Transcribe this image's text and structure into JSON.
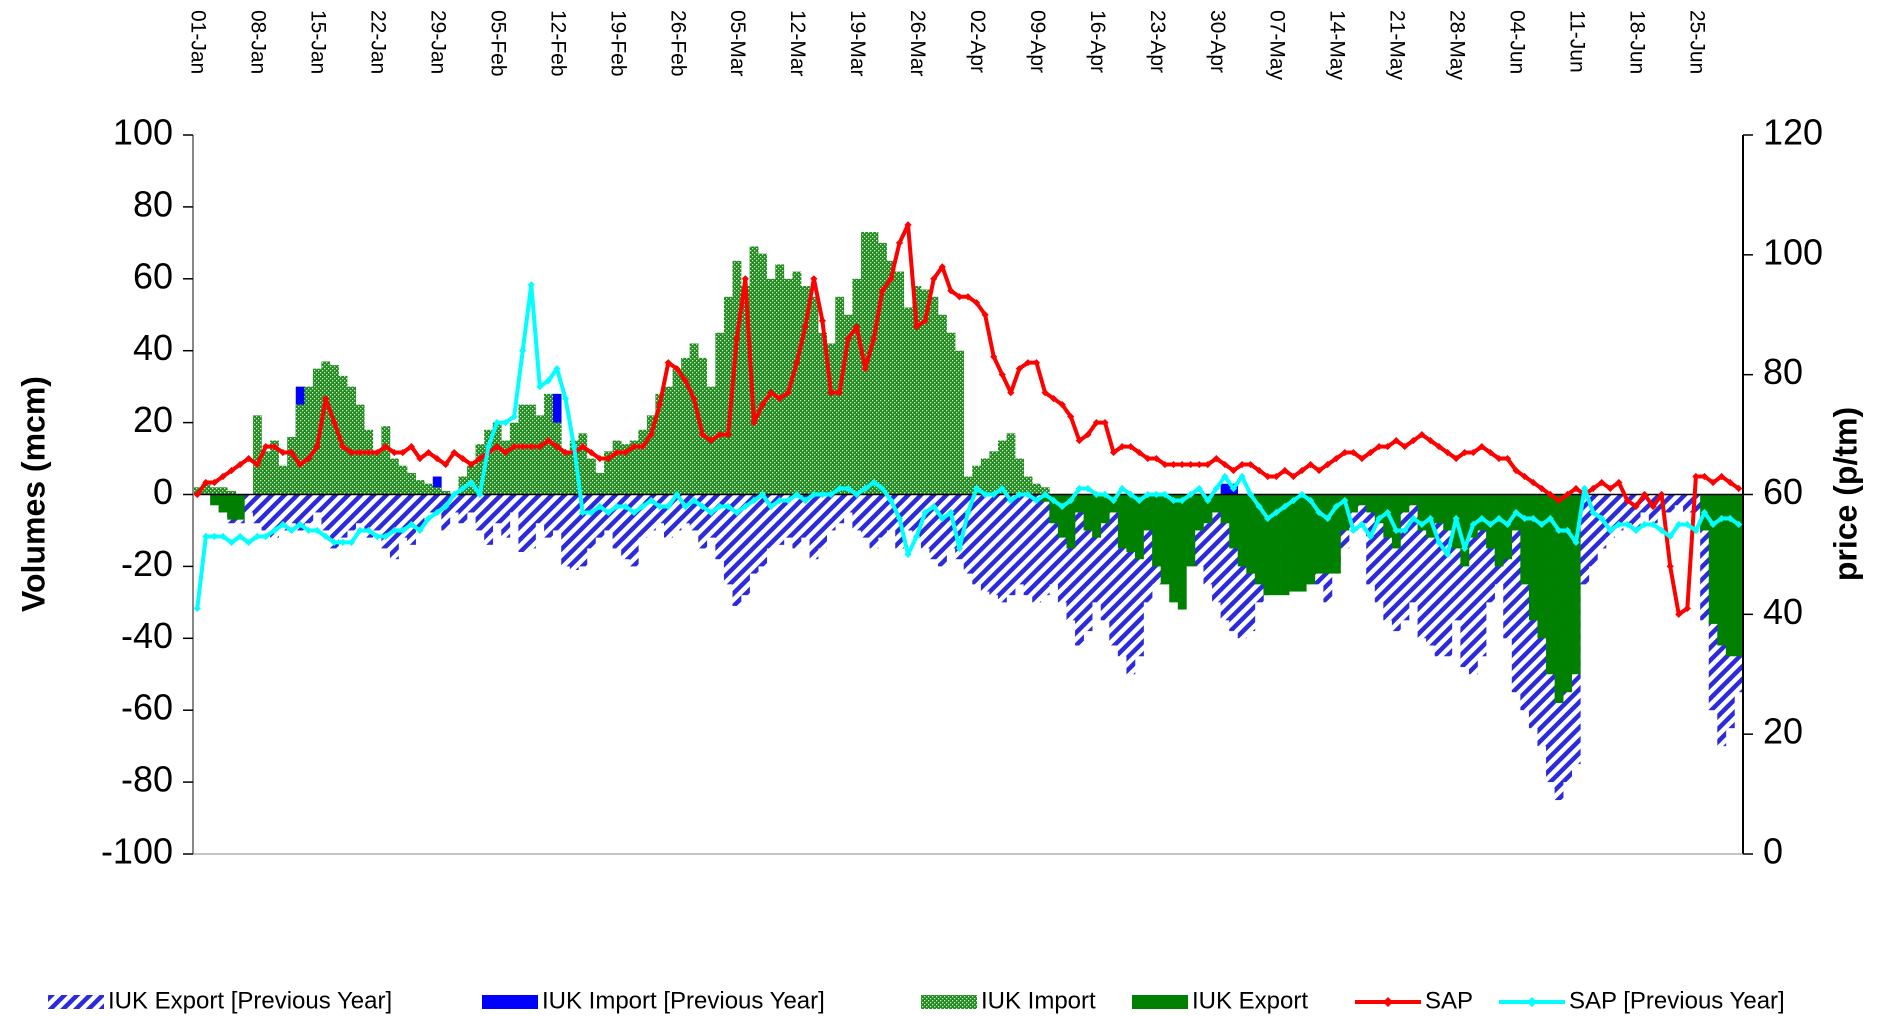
{
  "chart_data": {
    "type": "bar-line",
    "y_label": "Volumes (mcm)",
    "y2_label": "price (p/tm)",
    "ylim": [
      -100,
      100
    ],
    "yticks": [
      -100,
      -80,
      -60,
      -40,
      -20,
      0,
      20,
      40,
      60,
      80,
      100
    ],
    "y2lim": [
      0,
      120
    ],
    "y2ticks": [
      0,
      20,
      40,
      60,
      80,
      100,
      120
    ],
    "legend": "bottom",
    "grid": false,
    "categories": [
      "01-Jan",
      null,
      null,
      null,
      null,
      null,
      null,
      "08-Jan",
      null,
      null,
      null,
      null,
      null,
      null,
      "15-Jan",
      null,
      null,
      null,
      null,
      null,
      null,
      "22-Jan",
      null,
      null,
      null,
      null,
      null,
      null,
      "29-Jan",
      null,
      null,
      null,
      null,
      null,
      null,
      "05-Feb",
      null,
      null,
      null,
      null,
      null,
      null,
      "12-Feb",
      null,
      null,
      null,
      null,
      null,
      null,
      "19-Feb",
      null,
      null,
      null,
      null,
      null,
      null,
      "26-Feb",
      null,
      null,
      null,
      null,
      null,
      null,
      "05-Mar",
      null,
      null,
      null,
      null,
      null,
      null,
      "12-Mar",
      null,
      null,
      null,
      null,
      null,
      null,
      "19-Mar",
      null,
      null,
      null,
      null,
      null,
      null,
      "26-Mar",
      null,
      null,
      null,
      null,
      null,
      null,
      "02-Apr",
      null,
      null,
      null,
      null,
      null,
      null,
      "09-Apr",
      null,
      null,
      null,
      null,
      null,
      null,
      "16-Apr",
      null,
      null,
      null,
      null,
      null,
      null,
      "23-Apr",
      null,
      null,
      null,
      null,
      null,
      null,
      "30-Apr",
      null,
      null,
      null,
      null,
      null,
      null,
      "07-May",
      null,
      null,
      null,
      null,
      null,
      null,
      "14-May",
      null,
      null,
      null,
      null,
      null,
      null,
      "21-May",
      null,
      null,
      null,
      null,
      null,
      null,
      "28-May",
      null,
      null,
      null,
      null,
      null,
      null,
      "04-Jun",
      null,
      null,
      null,
      null,
      null,
      null,
      "11-Jun",
      null,
      null,
      null,
      null,
      null,
      null,
      "18-Jun",
      null,
      null,
      null,
      null,
      null,
      null,
      "25-Jun",
      null,
      null,
      null,
      null,
      null
    ],
    "series": [
      {
        "name": "IUK Export [Previous Year]",
        "kind": "bar",
        "pattern": "hatch",
        "color": "#2b2bdc",
        "values": [
          0,
          0,
          -2,
          -5,
          -8,
          -8,
          -5,
          -8,
          -10,
          -12,
          -10,
          -8,
          -10,
          -8,
          -5,
          -10,
          -15,
          -12,
          -10,
          -8,
          -12,
          -10,
          -15,
          -18,
          -12,
          -14,
          -10,
          -5,
          -5,
          -10,
          -5,
          -8,
          -5,
          -10,
          -14,
          -8,
          -12,
          -5,
          -16,
          -15,
          -8,
          -12,
          -10,
          -20,
          -21,
          -20,
          -15,
          -12,
          -10,
          -15,
          -18,
          -20,
          -12,
          -10,
          -8,
          -12,
          -10,
          -8,
          -10,
          -15,
          -12,
          -18,
          -25,
          -31,
          -28,
          -22,
          -20,
          -15,
          -14,
          -12,
          -15,
          -12,
          -18,
          -15,
          -10,
          -8,
          -5,
          -10,
          -12,
          -15,
          -12,
          -10,
          -15,
          -10,
          -12,
          -15,
          -18,
          -20,
          -15,
          -18,
          -22,
          -25,
          -27,
          -28,
          -30,
          -28,
          -25,
          -28,
          -30,
          -28,
          -25,
          -30,
          -35,
          -42,
          -38,
          -30,
          -35,
          -42,
          -45,
          -50,
          -45,
          -30,
          -25,
          -20,
          -15,
          -10,
          -15,
          -20,
          -25,
          -30,
          -35,
          -38,
          -40,
          -38,
          -30,
          -28,
          -25,
          -20,
          -18,
          -15,
          -20,
          -25,
          -30,
          -20,
          -15,
          -10,
          -8,
          -25,
          -30,
          -35,
          -38,
          -35,
          -30,
          -40,
          -42,
          -45,
          -45,
          -35,
          -48,
          -50,
          -45,
          -30,
          -25,
          -40,
          -55,
          -60,
          -65,
          -70,
          -80,
          -85,
          -80,
          -75,
          -25,
          -20,
          -15,
          -12,
          -10,
          -8,
          -10,
          -5,
          -8,
          -5,
          -5,
          -3,
          -5,
          -5,
          -35,
          -60,
          -70,
          -65,
          -55
        ]
      },
      {
        "name": "IUK Import [Previous Year]",
        "kind": "bar",
        "pattern": "solid",
        "color": "#0000ff",
        "values": [
          0,
          0,
          0,
          0,
          0,
          0,
          0,
          0,
          0,
          0,
          0,
          0,
          30,
          25,
          0,
          0,
          0,
          0,
          0,
          0,
          0,
          0,
          0,
          0,
          0,
          0,
          0,
          0,
          5,
          0,
          0,
          0,
          0,
          0,
          0,
          0,
          0,
          0,
          0,
          0,
          0,
          0,
          28,
          0,
          0,
          0,
          0,
          0,
          0,
          0,
          0,
          0,
          0,
          0,
          0,
          0,
          0,
          0,
          0,
          0,
          0,
          0,
          0,
          0,
          0,
          0,
          0,
          0,
          0,
          0,
          0,
          0,
          0,
          0,
          0,
          0,
          0,
          0,
          0,
          0,
          0,
          0,
          0,
          0,
          0,
          0,
          0,
          0,
          0,
          0,
          0,
          0,
          0,
          0,
          0,
          0,
          0,
          0,
          0,
          0,
          0,
          0,
          0,
          0,
          0,
          0,
          0,
          0,
          0,
          0,
          0,
          0,
          0,
          0,
          0,
          0,
          0,
          0,
          0,
          0,
          3,
          3,
          0,
          0,
          0,
          0,
          0,
          0,
          0,
          0,
          0,
          0,
          0,
          0,
          0,
          0,
          0,
          0,
          0,
          0,
          0,
          0,
          0,
          0,
          0,
          0,
          0,
          0,
          0,
          0,
          0,
          0,
          0,
          0,
          0,
          0,
          0,
          0,
          0,
          0,
          0,
          0,
          0,
          0,
          0,
          0,
          0,
          0,
          0,
          0,
          0,
          0,
          0,
          0,
          0,
          0,
          0,
          0,
          0,
          0,
          0
        ]
      },
      {
        "name": "IUK Import",
        "kind": "bar",
        "pattern": "dots",
        "color": "#1f8a1f",
        "values": [
          2,
          3,
          2,
          2,
          1,
          0,
          0,
          22,
          12,
          15,
          8,
          16,
          25,
          30,
          35,
          37,
          36,
          33,
          30,
          25,
          18,
          12,
          19,
          10,
          8,
          6,
          4,
          3,
          2,
          1,
          0,
          5,
          8,
          14,
          18,
          20,
          15,
          20,
          25,
          25,
          22,
          28,
          20,
          12,
          15,
          17,
          10,
          6,
          12,
          15,
          14,
          15,
          18,
          22,
          28,
          30,
          35,
          38,
          42,
          38,
          30,
          45,
          55,
          65,
          58,
          69,
          67,
          60,
          64,
          60,
          62,
          58,
          55,
          45,
          42,
          55,
          50,
          60,
          73,
          73,
          70,
          65,
          62,
          52,
          58,
          57,
          55,
          50,
          45,
          40,
          5,
          8,
          10,
          12,
          15,
          17,
          10,
          5,
          3,
          2,
          0,
          0,
          0,
          0,
          0,
          0,
          0,
          0,
          0,
          0,
          0,
          0,
          0,
          0,
          0,
          0,
          0,
          0,
          0,
          0,
          0,
          0,
          0,
          0,
          0,
          0,
          0,
          0,
          0,
          0,
          0,
          0,
          0,
          0,
          0,
          0,
          0,
          0,
          0,
          0,
          0,
          0,
          0,
          0,
          0,
          0,
          0,
          0,
          0,
          0,
          0,
          0,
          0,
          0,
          0,
          0,
          0,
          0,
          0,
          0,
          0,
          0,
          0,
          0,
          0,
          0,
          0,
          0,
          0,
          0,
          0,
          0,
          0,
          0,
          0,
          0,
          0,
          0,
          0,
          0,
          0
        ]
      },
      {
        "name": "IUK Export",
        "kind": "bar",
        "pattern": "solid",
        "color": "#008000",
        "values": [
          0,
          0,
          -3,
          -5,
          -7,
          -7,
          0,
          0,
          0,
          0,
          0,
          0,
          0,
          0,
          0,
          0,
          0,
          0,
          0,
          0,
          0,
          0,
          0,
          0,
          0,
          0,
          0,
          0,
          0,
          0,
          0,
          0,
          0,
          0,
          0,
          0,
          0,
          0,
          0,
          0,
          0,
          0,
          0,
          0,
          0,
          0,
          0,
          0,
          0,
          0,
          0,
          0,
          0,
          0,
          0,
          0,
          0,
          0,
          0,
          0,
          0,
          0,
          0,
          0,
          0,
          0,
          0,
          0,
          0,
          0,
          0,
          0,
          0,
          0,
          0,
          0,
          0,
          0,
          0,
          0,
          0,
          0,
          0,
          0,
          0,
          0,
          0,
          0,
          0,
          0,
          0,
          0,
          0,
          0,
          0,
          0,
          0,
          0,
          0,
          -2,
          -8,
          -12,
          -15,
          -5,
          -10,
          -12,
          -8,
          -5,
          -15,
          -16,
          -18,
          -10,
          -20,
          -25,
          -30,
          -32,
          -20,
          -10,
          -8,
          -5,
          -8,
          -15,
          -20,
          -22,
          -25,
          -28,
          -28,
          -28,
          -27,
          -27,
          -25,
          -22,
          -22,
          -22,
          -10,
          -5,
          -3,
          -5,
          -8,
          -12,
          -15,
          -5,
          -3,
          -10,
          -12,
          -8,
          -10,
          -15,
          -20,
          -12,
          -10,
          -15,
          -20,
          -18,
          -10,
          -25,
          -35,
          -40,
          -50,
          -58,
          -55,
          -50,
          0,
          0,
          0,
          0,
          0,
          0,
          0,
          0,
          0,
          0,
          0,
          0,
          0,
          0,
          -10,
          -36,
          -42,
          -45,
          -45
        ]
      },
      {
        "name": "SAP",
        "kind": "line",
        "axis": "y2",
        "color": "#ff0000",
        "values": [
          60,
          62,
          62,
          63,
          64,
          65,
          66,
          65,
          68,
          68,
          67,
          67,
          65,
          66,
          68,
          76,
          72,
          68,
          67,
          67,
          67,
          67,
          68,
          67,
          67,
          68,
          66,
          67,
          66,
          65,
          67,
          66,
          65,
          66,
          67,
          68,
          67,
          68,
          68,
          68,
          68,
          69,
          68,
          67,
          67,
          68,
          67,
          66,
          66,
          67,
          67,
          68,
          68,
          70,
          75,
          82,
          81,
          79,
          76,
          70,
          69,
          70,
          70,
          86,
          96,
          72,
          75,
          77,
          76,
          77,
          82,
          88,
          96,
          89,
          77,
          77,
          86,
          88,
          81,
          86,
          94,
          96,
          102,
          105,
          88,
          89,
          96,
          98,
          94,
          93,
          93,
          92,
          90,
          83,
          80,
          77,
          81,
          82,
          82,
          77,
          76,
          75,
          73,
          69,
          70,
          72,
          72,
          67,
          68,
          68,
          67,
          66,
          66,
          65,
          65,
          65,
          65,
          65,
          65,
          66,
          65,
          64,
          65,
          65,
          64,
          63,
          63,
          64,
          63,
          64,
          65,
          64,
          65,
          66,
          67,
          67,
          66,
          67,
          68,
          68,
          69,
          68,
          69,
          70,
          69,
          68,
          67,
          66,
          67,
          67,
          68,
          67,
          66,
          66,
          64,
          63,
          62,
          61,
          60,
          59,
          60,
          61,
          60,
          61,
          62,
          61,
          62,
          59,
          58,
          60,
          58,
          60,
          48,
          40,
          41,
          63,
          63,
          62,
          63,
          62,
          61
        ]
      },
      {
        "name": "SAP [Previous Year]",
        "kind": "line",
        "axis": "y2",
        "color": "#00ffff",
        "values": [
          41,
          53,
          53,
          53,
          52,
          53,
          52,
          53,
          53,
          54,
          55,
          54,
          55,
          54,
          54,
          53,
          52,
          52,
          52,
          54,
          54,
          53,
          53,
          54,
          54,
          55,
          54,
          56,
          57,
          58,
          60,
          61,
          62,
          60,
          68,
          72,
          72,
          73,
          84,
          95,
          78,
          79,
          81,
          76,
          68,
          57,
          57,
          58,
          57,
          58,
          58,
          57,
          58,
          59,
          58,
          58,
          60,
          58,
          59,
          58,
          57,
          58,
          58,
          57,
          58,
          59,
          60,
          58,
          59,
          59,
          60,
          59,
          60,
          60,
          60,
          61,
          61,
          60,
          61,
          62,
          61,
          59,
          56,
          50,
          53,
          57,
          58,
          56,
          57,
          51,
          57,
          61,
          60,
          60,
          61,
          59,
          60,
          60,
          59,
          60,
          59,
          58,
          59,
          61,
          61,
          60,
          60,
          59,
          61,
          60,
          59,
          60,
          60,
          60,
          59,
          59,
          60,
          61,
          59,
          61,
          63,
          61,
          63,
          60,
          58,
          56,
          57,
          58,
          59,
          60,
          59,
          57,
          56,
          58,
          59,
          54,
          55,
          53,
          56,
          57,
          54,
          54,
          56,
          55,
          56,
          52,
          50,
          56,
          51,
          55,
          56,
          55,
          56,
          55,
          57,
          56,
          56,
          55,
          56,
          54,
          54,
          52,
          61,
          57,
          56,
          54,
          55,
          55,
          54,
          55,
          55,
          54,
          53,
          55,
          55,
          54,
          57,
          55,
          56,
          56,
          55
        ]
      }
    ]
  }
}
